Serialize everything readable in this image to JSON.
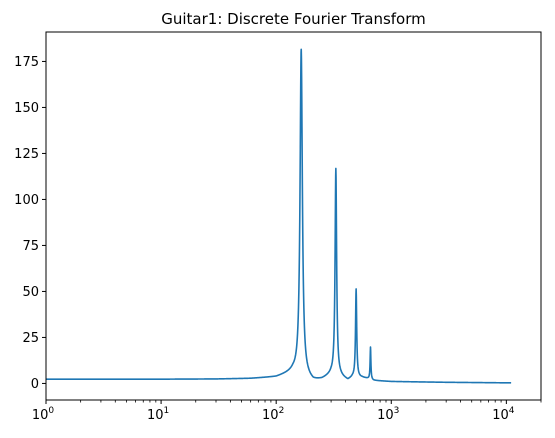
{
  "chart_data": {
    "type": "line",
    "title": "Guitar1: Discrete Fourier Transform",
    "xlabel": "",
    "ylabel": "",
    "xscale": "log",
    "xlim": [
      1,
      20000
    ],
    "ylim": [
      -9,
      191
    ],
    "grid": false,
    "legend": "none",
    "line_color": "#1f77b4",
    "x_ticks": [
      {
        "value": 1,
        "base": "10",
        "exp": "0"
      },
      {
        "value": 10,
        "base": "10",
        "exp": "1"
      },
      {
        "value": 100,
        "base": "10",
        "exp": "2"
      },
      {
        "value": 1000,
        "base": "10",
        "exp": "3"
      },
      {
        "value": 10000,
        "base": "10",
        "exp": "4"
      }
    ],
    "y_ticks": [
      {
        "value": 0,
        "label": "0"
      },
      {
        "value": 25,
        "label": "25"
      },
      {
        "value": 50,
        "label": "50"
      },
      {
        "value": 75,
        "label": "75"
      },
      {
        "value": 100,
        "label": "100"
      },
      {
        "value": 125,
        "label": "125"
      },
      {
        "value": 150,
        "label": "150"
      },
      {
        "value": 175,
        "label": "175"
      }
    ],
    "baseline": [
      {
        "x": 1,
        "y": 2.3
      },
      {
        "x": 10,
        "y": 2.3
      },
      {
        "x": 30,
        "y": 2.4
      },
      {
        "x": 60,
        "y": 2.7
      },
      {
        "x": 100,
        "y": 3.5
      },
      {
        "x": 140,
        "y": 6
      },
      {
        "x": 210,
        "y": 1.0
      },
      {
        "x": 250,
        "y": 2.0
      },
      {
        "x": 300,
        "y": 4.5
      },
      {
        "x": 360,
        "y": 3.5
      },
      {
        "x": 420,
        "y": 1.5
      },
      {
        "x": 460,
        "y": 3
      },
      {
        "x": 560,
        "y": 3
      },
      {
        "x": 620,
        "y": 2.5
      },
      {
        "x": 700,
        "y": 1.5
      },
      {
        "x": 1000,
        "y": 1.0
      },
      {
        "x": 3000,
        "y": 0.6
      },
      {
        "x": 11000,
        "y": 0.3
      }
    ],
    "peaks": [
      {
        "x": 165,
        "y": 181.5,
        "width": 0.012
      },
      {
        "x": 330,
        "y": 116.5,
        "width": 0.008
      },
      {
        "x": 495,
        "y": 51,
        "width": 0.006
      },
      {
        "x": 660,
        "y": 19.5,
        "width": 0.004
      }
    ]
  }
}
